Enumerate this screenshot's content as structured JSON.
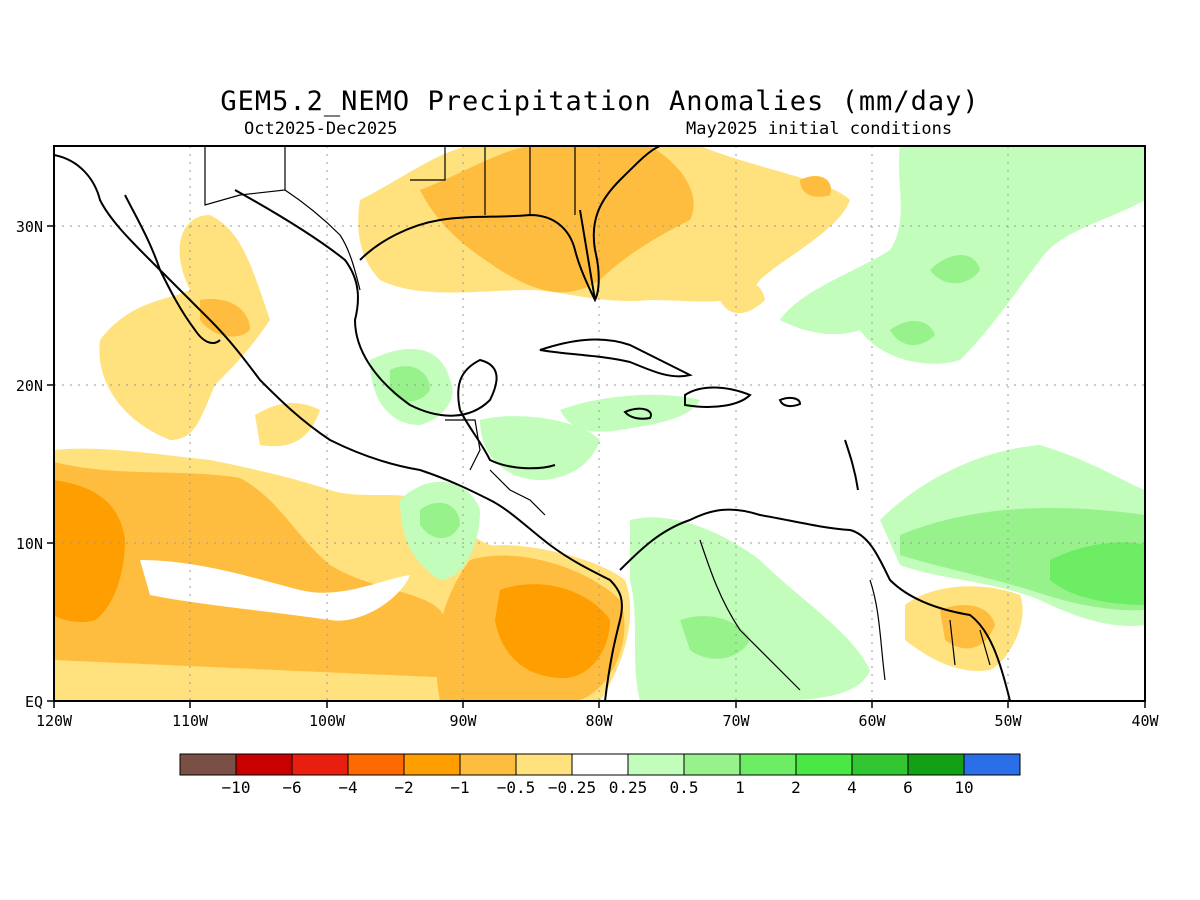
{
  "title": "GEM5.2_NEMO Precipitation Anomalies (mm/day)",
  "period": "Oct2025-Dec2025",
  "init": "May2025 initial conditions",
  "map": {
    "x_ticks": [
      "120W",
      "110W",
      "100W",
      "90W",
      "80W",
      "70W",
      "60W",
      "50W",
      "40W"
    ],
    "y_ticks": [
      "EQ",
      "10N",
      "20N",
      "30N"
    ],
    "gridlines": "dotted"
  },
  "legend": {
    "colors": [
      "#7a4f45",
      "#c80000",
      "#e81e0e",
      "#ff6a00",
      "#ff9e00",
      "#ffbd40",
      "#ffe27e",
      "#ffffff",
      "#c2fdbc",
      "#97f28c",
      "#6ded64",
      "#4ae845",
      "#32c632",
      "#14a014",
      "#2a6fe8"
    ],
    "labels": [
      "−10",
      "−6",
      "−4",
      "−2",
      "−1",
      "−0.5",
      "−0.25",
      "0.25",
      "0.5",
      "1",
      "2",
      "4",
      "6",
      "10"
    ]
  }
}
